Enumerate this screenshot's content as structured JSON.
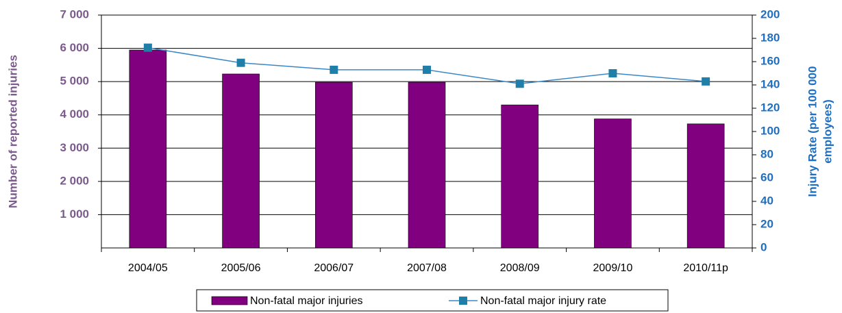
{
  "chart_data": {
    "type": "bar",
    "y_label": "Number of reported injuries",
    "y2_label": [
      "Injury Rate (per 100 000",
      "employees)"
    ],
    "categories": [
      "2004/05",
      "2005/06",
      "2006/07",
      "2007/08",
      "2008/09",
      "2009/10",
      "2010/11p"
    ],
    "series": [
      {
        "name": "Non-fatal major injuries",
        "type": "bar",
        "color": "#800080",
        "values": [
          5950,
          5230,
          4980,
          4980,
          4300,
          3880,
          3730
        ]
      },
      {
        "name": "Non-fatal major injury rate",
        "type": "line",
        "axis": "y2",
        "color": "#3a87c8",
        "marker_color": "#1f7fa8",
        "values": [
          172,
          159,
          153,
          153,
          141,
          150,
          143
        ]
      }
    ],
    "ylim": [
      0,
      7000
    ],
    "yticks": [
      {
        "value": 1000,
        "label": "1 000"
      },
      {
        "value": 2000,
        "label": "2 000"
      },
      {
        "value": 3000,
        "label": "3 000"
      },
      {
        "value": 4000,
        "label": "4 000"
      },
      {
        "value": 5000,
        "label": "5 000"
      },
      {
        "value": 6000,
        "label": "6 000"
      },
      {
        "value": 7000,
        "label": "7 000"
      }
    ],
    "y2lim": [
      0,
      200
    ],
    "y2ticks": [
      0,
      20,
      40,
      60,
      80,
      100,
      120,
      140,
      160,
      180,
      200
    ],
    "grid": true,
    "y_label_color": "#7b5a8c",
    "y2_label_color": "#1f6fc0"
  }
}
